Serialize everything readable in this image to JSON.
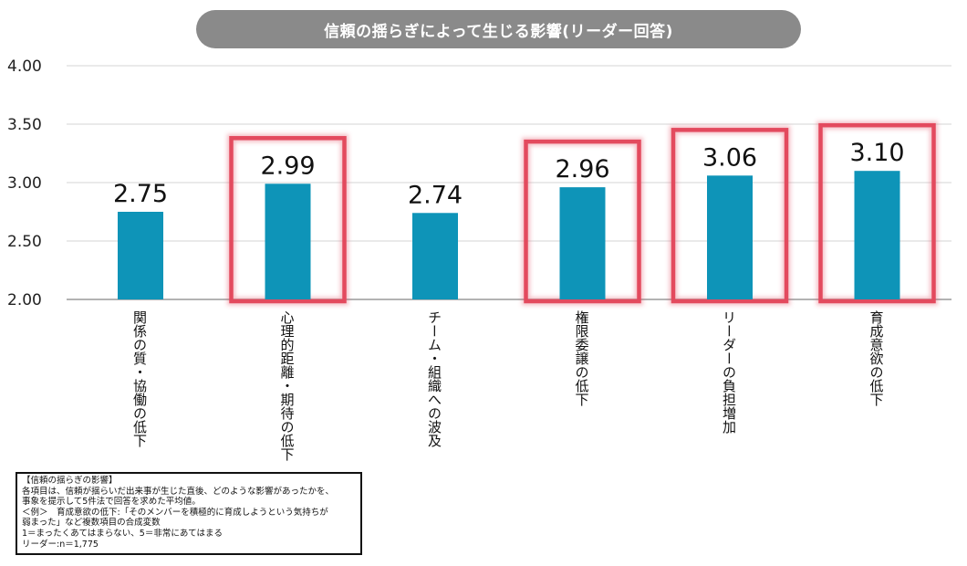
{
  "chart_data": {
    "type": "bar",
    "title": "信頼の揺らぎによって生じる影響(リーダー回答)",
    "categories": [
      "関係の質・協働の低下",
      "心理的距離・期待の低下",
      "チーム・組織への波及",
      "権限委譲の低下",
      "リーダーの負担増加",
      "育成意欲の低下"
    ],
    "values": [
      2.75,
      2.99,
      2.74,
      2.96,
      3.06,
      3.1
    ],
    "value_labels": [
      "2.75",
      "2.99",
      "2.74",
      "2.96",
      "3.06",
      "3.10"
    ],
    "highlighted": [
      false,
      true,
      false,
      true,
      true,
      true
    ],
    "ylim": [
      2.0,
      4.0
    ],
    "yticks": [
      "2.00",
      "2.50",
      "3.00",
      "3.50",
      "4.00"
    ],
    "ytick_values": [
      2.0,
      2.5,
      3.0,
      3.5,
      4.0
    ],
    "grid": true,
    "bar_color": "#0e94b8",
    "highlight_color": "#e34a5e"
  },
  "note": {
    "lines": [
      "【信頼の揺らぎの影響】",
      "各項目は、信頼が揺らいだ出来事が生じた直後、どのような影響があったかを、",
      "事象を提示して5件法で回答を求めた平均値。",
      "＜例＞　育成意欲の低下:「そのメンバーを積極的に育成しようという気持ちが",
      "弱まった」など複数項目の合成変数",
      "1＝まったくあてはまらない、5＝非常にあてはまる",
      "リーダー:n＝1,775"
    ]
  }
}
